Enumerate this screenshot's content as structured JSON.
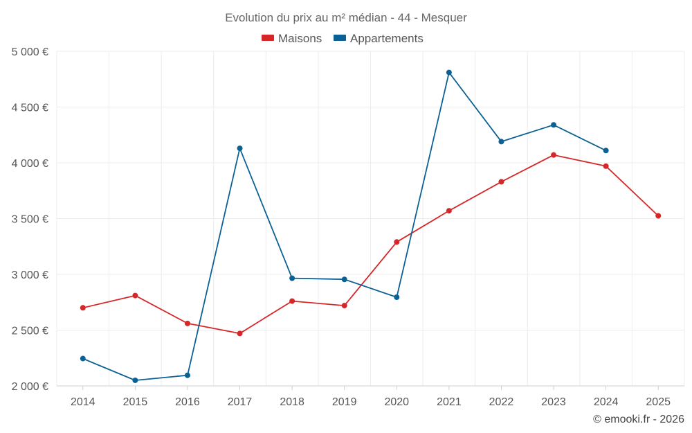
{
  "chart_data": {
    "type": "line",
    "title": "Evolution du prix au m² médian - 44 - Mesquer",
    "categories": [
      "2014",
      "2015",
      "2016",
      "2017",
      "2018",
      "2019",
      "2020",
      "2021",
      "2022",
      "2023",
      "2024",
      "2025"
    ],
    "series": [
      {
        "name": "Maisons",
        "color": "#d62728",
        "values": [
          2700,
          2810,
          2560,
          2470,
          2760,
          2720,
          3290,
          3570,
          3830,
          4070,
          3970,
          3525
        ]
      },
      {
        "name": "Appartements",
        "color": "#0b6194",
        "values": [
          2245,
          2050,
          2095,
          4130,
          2965,
          2955,
          2795,
          4810,
          4190,
          4340,
          4110,
          null
        ]
      }
    ],
    "ylim": [
      2000,
      5000
    ],
    "yticks": [
      2000,
      2500,
      3000,
      3500,
      4000,
      4500,
      5000
    ],
    "ytick_labels": [
      "2 000 €",
      "2 500 €",
      "3 000 €",
      "3 500 €",
      "4 000 €",
      "4 500 €",
      "5 000 €"
    ],
    "xlabel": "",
    "ylabel": "",
    "grid": true,
    "legend_position": "top-center",
    "credit": "© emooki.fr - 2026"
  }
}
